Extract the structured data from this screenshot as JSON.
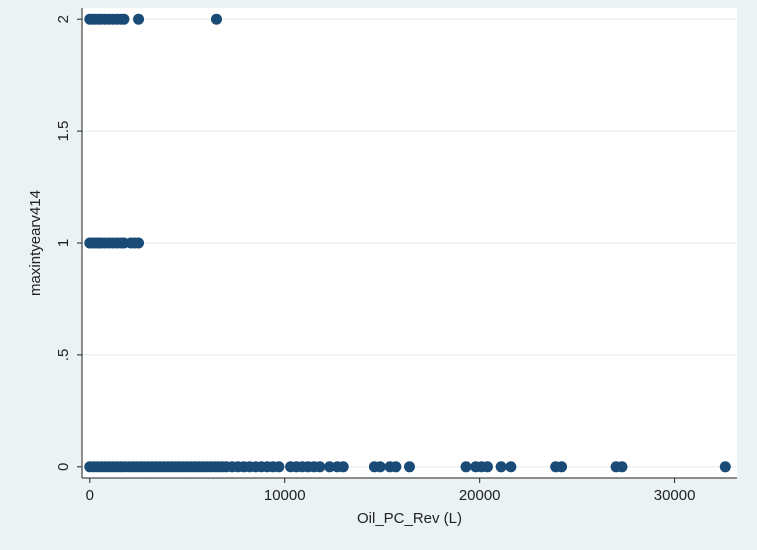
{
  "chart_data": {
    "type": "scatter",
    "xlabel": "Oil_PC_Rev (L)",
    "ylabel": "maxintyearv414",
    "xlim": [
      -400,
      33200
    ],
    "ylim": [
      -0.05,
      2.05
    ],
    "x_ticks": [
      {
        "value": 0,
        "label": "0"
      },
      {
        "value": 10000,
        "label": "10000"
      },
      {
        "value": 20000,
        "label": "20000"
      },
      {
        "value": 30000,
        "label": "30000"
      }
    ],
    "y_ticks": [
      {
        "value": 0,
        "label": "0"
      },
      {
        "value": 0.5,
        "label": ".5"
      },
      {
        "value": 1,
        "label": "1"
      },
      {
        "value": 1.5,
        "label": "1.5"
      },
      {
        "value": 2,
        "label": "2"
      }
    ],
    "grid": true,
    "legend": "none",
    "colors": {
      "background": "#eaf2f3",
      "plot": "#ffffff",
      "marker": "#1a4a76"
    },
    "points": [
      {
        "x": 0,
        "y": 2
      },
      {
        "x": 150,
        "y": 2
      },
      {
        "x": 300,
        "y": 2
      },
      {
        "x": 450,
        "y": 2
      },
      {
        "x": 600,
        "y": 2
      },
      {
        "x": 800,
        "y": 2
      },
      {
        "x": 1000,
        "y": 2
      },
      {
        "x": 1200,
        "y": 2
      },
      {
        "x": 1400,
        "y": 2
      },
      {
        "x": 1600,
        "y": 2
      },
      {
        "x": 1750,
        "y": 2
      },
      {
        "x": 2500,
        "y": 2
      },
      {
        "x": 6500,
        "y": 2
      },
      {
        "x": 0,
        "y": 1
      },
      {
        "x": 150,
        "y": 1
      },
      {
        "x": 300,
        "y": 1
      },
      {
        "x": 450,
        "y": 1
      },
      {
        "x": 600,
        "y": 1
      },
      {
        "x": 800,
        "y": 1
      },
      {
        "x": 1000,
        "y": 1
      },
      {
        "x": 1200,
        "y": 1
      },
      {
        "x": 1400,
        "y": 1
      },
      {
        "x": 1600,
        "y": 1
      },
      {
        "x": 1750,
        "y": 1
      },
      {
        "x": 2100,
        "y": 1
      },
      {
        "x": 2300,
        "y": 1
      },
      {
        "x": 2500,
        "y": 1
      },
      {
        "x": 0,
        "y": 0
      },
      {
        "x": 200,
        "y": 0
      },
      {
        "x": 400,
        "y": 0
      },
      {
        "x": 600,
        "y": 0
      },
      {
        "x": 800,
        "y": 0
      },
      {
        "x": 1000,
        "y": 0
      },
      {
        "x": 1200,
        "y": 0
      },
      {
        "x": 1400,
        "y": 0
      },
      {
        "x": 1600,
        "y": 0
      },
      {
        "x": 1800,
        "y": 0
      },
      {
        "x": 2000,
        "y": 0
      },
      {
        "x": 2200,
        "y": 0
      },
      {
        "x": 2400,
        "y": 0
      },
      {
        "x": 2600,
        "y": 0
      },
      {
        "x": 2800,
        "y": 0
      },
      {
        "x": 3000,
        "y": 0
      },
      {
        "x": 3200,
        "y": 0
      },
      {
        "x": 3400,
        "y": 0
      },
      {
        "x": 3600,
        "y": 0
      },
      {
        "x": 3800,
        "y": 0
      },
      {
        "x": 4000,
        "y": 0
      },
      {
        "x": 4200,
        "y": 0
      },
      {
        "x": 4400,
        "y": 0
      },
      {
        "x": 4600,
        "y": 0
      },
      {
        "x": 4800,
        "y": 0
      },
      {
        "x": 5000,
        "y": 0
      },
      {
        "x": 5200,
        "y": 0
      },
      {
        "x": 5400,
        "y": 0
      },
      {
        "x": 5600,
        "y": 0
      },
      {
        "x": 5800,
        "y": 0
      },
      {
        "x": 6000,
        "y": 0
      },
      {
        "x": 6200,
        "y": 0
      },
      {
        "x": 6400,
        "y": 0
      },
      {
        "x": 6600,
        "y": 0
      },
      {
        "x": 6800,
        "y": 0
      },
      {
        "x": 7000,
        "y": 0
      },
      {
        "x": 7300,
        "y": 0
      },
      {
        "x": 7600,
        "y": 0
      },
      {
        "x": 7900,
        "y": 0
      },
      {
        "x": 8200,
        "y": 0
      },
      {
        "x": 8500,
        "y": 0
      },
      {
        "x": 8800,
        "y": 0
      },
      {
        "x": 9100,
        "y": 0
      },
      {
        "x": 9400,
        "y": 0
      },
      {
        "x": 9700,
        "y": 0
      },
      {
        "x": 10300,
        "y": 0
      },
      {
        "x": 10600,
        "y": 0
      },
      {
        "x": 10900,
        "y": 0
      },
      {
        "x": 11200,
        "y": 0
      },
      {
        "x": 11500,
        "y": 0
      },
      {
        "x": 11800,
        "y": 0
      },
      {
        "x": 12300,
        "y": 0
      },
      {
        "x": 12700,
        "y": 0
      },
      {
        "x": 13000,
        "y": 0
      },
      {
        "x": 14600,
        "y": 0
      },
      {
        "x": 14900,
        "y": 0
      },
      {
        "x": 15400,
        "y": 0
      },
      {
        "x": 15700,
        "y": 0
      },
      {
        "x": 16400,
        "y": 0
      },
      {
        "x": 19300,
        "y": 0
      },
      {
        "x": 19800,
        "y": 0
      },
      {
        "x": 20100,
        "y": 0
      },
      {
        "x": 20400,
        "y": 0
      },
      {
        "x": 21100,
        "y": 0
      },
      {
        "x": 21600,
        "y": 0
      },
      {
        "x": 23900,
        "y": 0
      },
      {
        "x": 24200,
        "y": 0
      },
      {
        "x": 27000,
        "y": 0
      },
      {
        "x": 27300,
        "y": 0
      },
      {
        "x": 32600,
        "y": 0
      }
    ]
  }
}
